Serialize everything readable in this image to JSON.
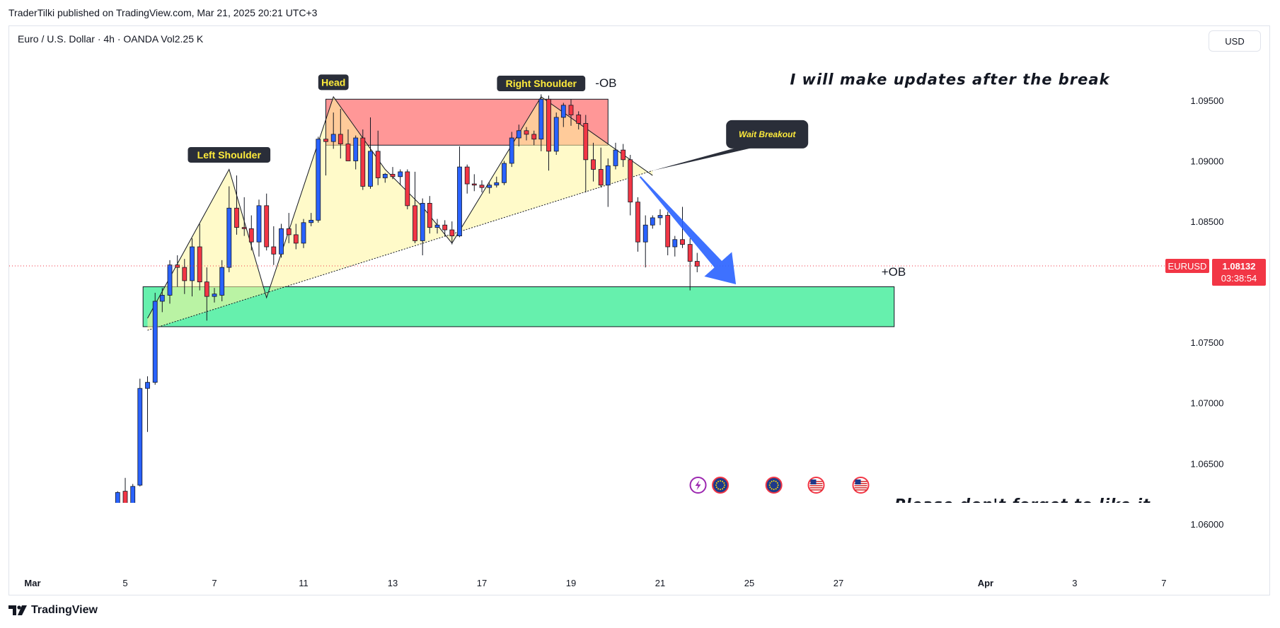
{
  "header": {
    "caption": "TraderTilki published on TradingView.com, Mar 21, 2025 20:21 UTC+3",
    "symbol_line": "Euro / U.S. Dollar · 4h · OANDA  Vol",
    "volume": "2.25 K",
    "currency": "USD"
  },
  "footer": {
    "brand": "TradingView"
  },
  "colors": {
    "up": "#2962ff",
    "down": "#f23645",
    "last_price": "#f23645",
    "bearish_ob": "#ff5252",
    "bullish_ob": "#00e676",
    "pattern_fill": "#fff59d",
    "arrow": "#2962ff"
  },
  "chart_data": {
    "type": "candlestick",
    "symbol": "EURUSD",
    "timeframe": "4h",
    "ylim": [
      1.0573,
      1.0995
    ],
    "y_ticks": [
      1.095,
      1.09,
      1.085,
      1.08,
      1.075,
      1.07,
      1.065,
      1.06
    ],
    "y_tick_labels": [
      "1.09500",
      "1.09000",
      "1.08500",
      "",
      "1.07500",
      "1.07000",
      "1.06500",
      "1.06000"
    ],
    "x_ticks": [
      {
        "label": "Mar",
        "day": 2.92,
        "bold": true
      },
      {
        "label": "5",
        "day": 5
      },
      {
        "label": "7",
        "day": 7
      },
      {
        "label": "11",
        "day": 9
      },
      {
        "label": "13",
        "day": 11
      },
      {
        "label": "17",
        "day": 13
      },
      {
        "label": "19",
        "day": 15
      },
      {
        "label": "21",
        "day": 17
      },
      {
        "label": "25",
        "day": 19
      },
      {
        "label": "27",
        "day": 21
      },
      {
        "label": "Apr",
        "day": 24.3,
        "bold": true
      },
      {
        "label": "3",
        "day": 26.3
      },
      {
        "label": "7",
        "day": 28.3
      }
    ],
    "last_price": {
      "symbol": "EURUSD",
      "value": 1.08132,
      "countdown": "03:38:54"
    },
    "candles": [
      {
        "t": 4.83,
        "o": 1.0563,
        "h": 1.0627,
        "l": 1.0555,
        "c": 1.0626
      },
      {
        "t": 5.0,
        "o": 1.0627,
        "h": 1.0638,
        "l": 1.061,
        "c": 1.0615
      },
      {
        "t": 5.17,
        "o": 1.0614,
        "h": 1.0633,
        "l": 1.0604,
        "c": 1.0631
      },
      {
        "t": 5.33,
        "o": 1.0632,
        "h": 1.072,
        "l": 1.0631,
        "c": 1.0712
      },
      {
        "t": 5.5,
        "o": 1.0712,
        "h": 1.0722,
        "l": 1.0676,
        "c": 1.0717
      },
      {
        "t": 5.67,
        "o": 1.0717,
        "h": 1.0791,
        "l": 1.0715,
        "c": 1.0784
      },
      {
        "t": 5.83,
        "o": 1.0784,
        "h": 1.0795,
        "l": 1.0775,
        "c": 1.0789
      },
      {
        "t": 6.0,
        "o": 1.0789,
        "h": 1.0818,
        "l": 1.0782,
        "c": 1.0814
      },
      {
        "t": 6.17,
        "o": 1.0814,
        "h": 1.0822,
        "l": 1.0796,
        "c": 1.0812
      },
      {
        "t": 6.33,
        "o": 1.0812,
        "h": 1.0819,
        "l": 1.079,
        "c": 1.0801
      },
      {
        "t": 6.5,
        "o": 1.0801,
        "h": 1.0836,
        "l": 1.0788,
        "c": 1.0829
      },
      {
        "t": 6.67,
        "o": 1.0829,
        "h": 1.0848,
        "l": 1.0793,
        "c": 1.08
      },
      {
        "t": 6.83,
        "o": 1.08,
        "h": 1.0812,
        "l": 1.0768,
        "c": 1.0788
      },
      {
        "t": 7.0,
        "o": 1.0788,
        "h": 1.0795,
        "l": 1.0783,
        "c": 1.079
      },
      {
        "t": 7.17,
        "o": 1.0789,
        "h": 1.0818,
        "l": 1.0784,
        "c": 1.0812
      },
      {
        "t": 7.33,
        "o": 1.0812,
        "h": 1.0879,
        "l": 1.0808,
        "c": 1.0861
      },
      {
        "t": 7.5,
        "o": 1.0861,
        "h": 1.0888,
        "l": 1.0839,
        "c": 1.0845
      },
      {
        "t": 7.67,
        "o": 1.0845,
        "h": 1.087,
        "l": 1.0838,
        "c": 1.0844
      },
      {
        "t": 7.83,
        "o": 1.0844,
        "h": 1.0855,
        "l": 1.0826,
        "c": 1.0833
      },
      {
        "t": 8.0,
        "o": 1.0833,
        "h": 1.0868,
        "l": 1.0821,
        "c": 1.0863
      },
      {
        "t": 8.17,
        "o": 1.0863,
        "h": 1.0873,
        "l": 1.0826,
        "c": 1.0829
      },
      {
        "t": 8.33,
        "o": 1.0829,
        "h": 1.0846,
        "l": 1.0814,
        "c": 1.0823
      },
      {
        "t": 8.5,
        "o": 1.0823,
        "h": 1.0848,
        "l": 1.082,
        "c": 1.0844
      },
      {
        "t": 8.67,
        "o": 1.0844,
        "h": 1.0857,
        "l": 1.0832,
        "c": 1.0839
      },
      {
        "t": 8.83,
        "o": 1.0839,
        "h": 1.0848,
        "l": 1.0827,
        "c": 1.0832
      },
      {
        "t": 9.0,
        "o": 1.0832,
        "h": 1.0852,
        "l": 1.0828,
        "c": 1.0849
      },
      {
        "t": 9.17,
        "o": 1.0849,
        "h": 1.0857,
        "l": 1.0846,
        "c": 1.0851
      },
      {
        "t": 9.33,
        "o": 1.0851,
        "h": 1.092,
        "l": 1.0849,
        "c": 1.0918
      },
      {
        "t": 9.5,
        "o": 1.0918,
        "h": 1.0938,
        "l": 1.0888,
        "c": 1.0916
      },
      {
        "t": 9.67,
        "o": 1.0916,
        "h": 1.094,
        "l": 1.091,
        "c": 1.0922
      },
      {
        "t": 9.83,
        "o": 1.0922,
        "h": 1.0943,
        "l": 1.0902,
        "c": 1.0914
      },
      {
        "t": 10.0,
        "o": 1.0914,
        "h": 1.0926,
        "l": 1.0903,
        "c": 1.09
      },
      {
        "t": 10.17,
        "o": 1.09,
        "h": 1.0921,
        "l": 1.0893,
        "c": 1.0919
      },
      {
        "t": 10.33,
        "o": 1.0919,
        "h": 1.0926,
        "l": 1.0876,
        "c": 1.0879
      },
      {
        "t": 10.5,
        "o": 1.0879,
        "h": 1.0936,
        "l": 1.0877,
        "c": 1.0908
      },
      {
        "t": 10.67,
        "o": 1.0908,
        "h": 1.0925,
        "l": 1.088,
        "c": 1.0886
      },
      {
        "t": 10.83,
        "o": 1.0886,
        "h": 1.089,
        "l": 1.0882,
        "c": 1.0889
      },
      {
        "t": 11.0,
        "o": 1.0889,
        "h": 1.0895,
        "l": 1.0885,
        "c": 1.0887
      },
      {
        "t": 11.17,
        "o": 1.0887,
        "h": 1.0893,
        "l": 1.088,
        "c": 1.0891
      },
      {
        "t": 11.33,
        "o": 1.0891,
        "h": 1.0893,
        "l": 1.086,
        "c": 1.0863
      },
      {
        "t": 11.5,
        "o": 1.0863,
        "h": 1.0891,
        "l": 1.0832,
        "c": 1.0834
      },
      {
        "t": 11.67,
        "o": 1.0834,
        "h": 1.0869,
        "l": 1.0822,
        "c": 1.0865
      },
      {
        "t": 11.83,
        "o": 1.0865,
        "h": 1.0871,
        "l": 1.084,
        "c": 1.0845
      },
      {
        "t": 12.0,
        "o": 1.0845,
        "h": 1.0852,
        "l": 1.084,
        "c": 1.0847
      },
      {
        "t": 12.17,
        "o": 1.0847,
        "h": 1.0851,
        "l": 1.0838,
        "c": 1.0843
      },
      {
        "t": 12.33,
        "o": 1.0843,
        "h": 1.085,
        "l": 1.0831,
        "c": 1.0838
      },
      {
        "t": 12.5,
        "o": 1.0838,
        "h": 1.0912,
        "l": 1.0837,
        "c": 1.0895
      },
      {
        "t": 12.67,
        "o": 1.0895,
        "h": 1.0897,
        "l": 1.0873,
        "c": 1.0881
      },
      {
        "t": 12.83,
        "o": 1.0881,
        "h": 1.0889,
        "l": 1.0875,
        "c": 1.088
      },
      {
        "t": 13.0,
        "o": 1.088,
        "h": 1.0884,
        "l": 1.0874,
        "c": 1.0878
      },
      {
        "t": 13.17,
        "o": 1.0878,
        "h": 1.0882,
        "l": 1.0873,
        "c": 1.088
      },
      {
        "t": 13.33,
        "o": 1.088,
        "h": 1.0887,
        "l": 1.0878,
        "c": 1.0882
      },
      {
        "t": 13.5,
        "o": 1.0882,
        "h": 1.09,
        "l": 1.088,
        "c": 1.0898
      },
      {
        "t": 13.67,
        "o": 1.0898,
        "h": 1.0924,
        "l": 1.0895,
        "c": 1.0919
      },
      {
        "t": 13.83,
        "o": 1.0919,
        "h": 1.093,
        "l": 1.0912,
        "c": 1.0925
      },
      {
        "t": 14.0,
        "o": 1.0925,
        "h": 1.0928,
        "l": 1.0917,
        "c": 1.0922
      },
      {
        "t": 14.17,
        "o": 1.0922,
        "h": 1.0925,
        "l": 1.0913,
        "c": 1.0918
      },
      {
        "t": 14.33,
        "o": 1.0918,
        "h": 1.0955,
        "l": 1.0908,
        "c": 1.0951
      },
      {
        "t": 14.5,
        "o": 1.0951,
        "h": 1.0954,
        "l": 1.0892,
        "c": 1.0908
      },
      {
        "t": 14.67,
        "o": 1.0908,
        "h": 1.094,
        "l": 1.0905,
        "c": 1.0936
      },
      {
        "t": 14.83,
        "o": 1.0936,
        "h": 1.0948,
        "l": 1.0928,
        "c": 1.0946
      },
      {
        "t": 15.0,
        "o": 1.0946,
        "h": 1.0951,
        "l": 1.0929,
        "c": 1.0938
      },
      {
        "t": 15.17,
        "o": 1.0938,
        "h": 1.0941,
        "l": 1.0926,
        "c": 1.0931
      },
      {
        "t": 15.33,
        "o": 1.0931,
        "h": 1.0938,
        "l": 1.0874,
        "c": 1.0901
      },
      {
        "t": 15.5,
        "o": 1.0901,
        "h": 1.0915,
        "l": 1.0883,
        "c": 1.0893
      },
      {
        "t": 15.67,
        "o": 1.0893,
        "h": 1.0911,
        "l": 1.0878,
        "c": 1.088
      },
      {
        "t": 15.83,
        "o": 1.088,
        "h": 1.0902,
        "l": 1.0862,
        "c": 1.0896
      },
      {
        "t": 16.0,
        "o": 1.0896,
        "h": 1.0915,
        "l": 1.0893,
        "c": 1.0909
      },
      {
        "t": 16.17,
        "o": 1.0909,
        "h": 1.0914,
        "l": 1.0895,
        "c": 1.0901
      },
      {
        "t": 16.33,
        "o": 1.0901,
        "h": 1.0905,
        "l": 1.0855,
        "c": 1.0866
      },
      {
        "t": 16.5,
        "o": 1.0866,
        "h": 1.087,
        "l": 1.0825,
        "c": 1.0833
      },
      {
        "t": 16.67,
        "o": 1.0833,
        "h": 1.0855,
        "l": 1.0812,
        "c": 1.0847
      },
      {
        "t": 16.83,
        "o": 1.0847,
        "h": 1.0855,
        "l": 1.0844,
        "c": 1.0853
      },
      {
        "t": 17.0,
        "o": 1.0853,
        "h": 1.086,
        "l": 1.0847,
        "c": 1.0855
      },
      {
        "t": 17.17,
        "o": 1.0855,
        "h": 1.0858,
        "l": 1.0822,
        "c": 1.0829
      },
      {
        "t": 17.33,
        "o": 1.0829,
        "h": 1.0838,
        "l": 1.0821,
        "c": 1.0835
      },
      {
        "t": 17.5,
        "o": 1.0835,
        "h": 1.0862,
        "l": 1.0828,
        "c": 1.0831
      },
      {
        "t": 17.67,
        "o": 1.0831,
        "h": 1.0836,
        "l": 1.0793,
        "c": 1.0817
      },
      {
        "t": 17.83,
        "o": 1.0817,
        "h": 1.0824,
        "l": 1.0808,
        "c": 1.0813
      }
    ],
    "zones": [
      {
        "label": "-OB",
        "kind": "bearish",
        "t0": 9.5,
        "t1": 15.83,
        "top": 1.0951,
        "bottom": 1.0913
      },
      {
        "label": "+OB",
        "kind": "bullish",
        "t0": 5.4,
        "t1": 22.25,
        "top": 1.0796,
        "bottom": 1.0763
      }
    ],
    "pattern": {
      "shoulders_path": [
        {
          "t": 5.5,
          "p": 1.077
        },
        {
          "t": 7.33,
          "p": 1.0893
        },
        {
          "t": 8.17,
          "p": 1.0787
        },
        {
          "t": 9.67,
          "p": 1.0953
        },
        {
          "t": 10.83,
          "p": 1.0893
        },
        {
          "t": 11.67,
          "p": 1.0862
        },
        {
          "t": 12.33,
          "p": 1.0832
        },
        {
          "t": 14.33,
          "p": 1.0953
        },
        {
          "t": 16.83,
          "p": 1.0888
        }
      ],
      "neckline": [
        {
          "t": 5.5,
          "p": 1.076
        },
        {
          "t": 16.83,
          "p": 1.0892
        }
      ]
    },
    "annotations": [
      {
        "kind": "label",
        "text": "Head",
        "t": 9.67,
        "p": 1.0965
      },
      {
        "kind": "label",
        "text": "Left Shoulder",
        "t": 7.33,
        "p": 1.0905
      },
      {
        "kind": "label",
        "text": "Right Shoulder",
        "t": 14.33,
        "p": 1.0964
      },
      {
        "kind": "text",
        "text": "-OB",
        "t": 15.83,
        "p": 1.0961
      },
      {
        "kind": "text",
        "text": "+OB",
        "t": 22.25,
        "p": 1.0805
      },
      {
        "kind": "callout",
        "text": "Wait Breakout",
        "t": 19.4,
        "p": 1.0922
      },
      {
        "kind": "note",
        "text": "I will make updates after the break",
        "t": 23.5,
        "p": 1.0963
      },
      {
        "kind": "note",
        "text": "Please don't forget to like it.",
        "t": 25.2,
        "p": 1.0612
      }
    ],
    "arrow": {
      "from": {
        "t": 16.55,
        "p": 1.0887
      },
      "to": {
        "t": 18.7,
        "p": 1.0798
      }
    },
    "event_icons": [
      {
        "icon": "lightning-icon",
        "t": 17.85
      },
      {
        "icon": "eu-flag-icon",
        "t": 18.35
      },
      {
        "icon": "eu-flag-icon",
        "t": 19.55
      },
      {
        "icon": "us-flag-icon",
        "t": 20.5
      },
      {
        "icon": "us-flag-icon",
        "t": 21.5
      }
    ]
  }
}
